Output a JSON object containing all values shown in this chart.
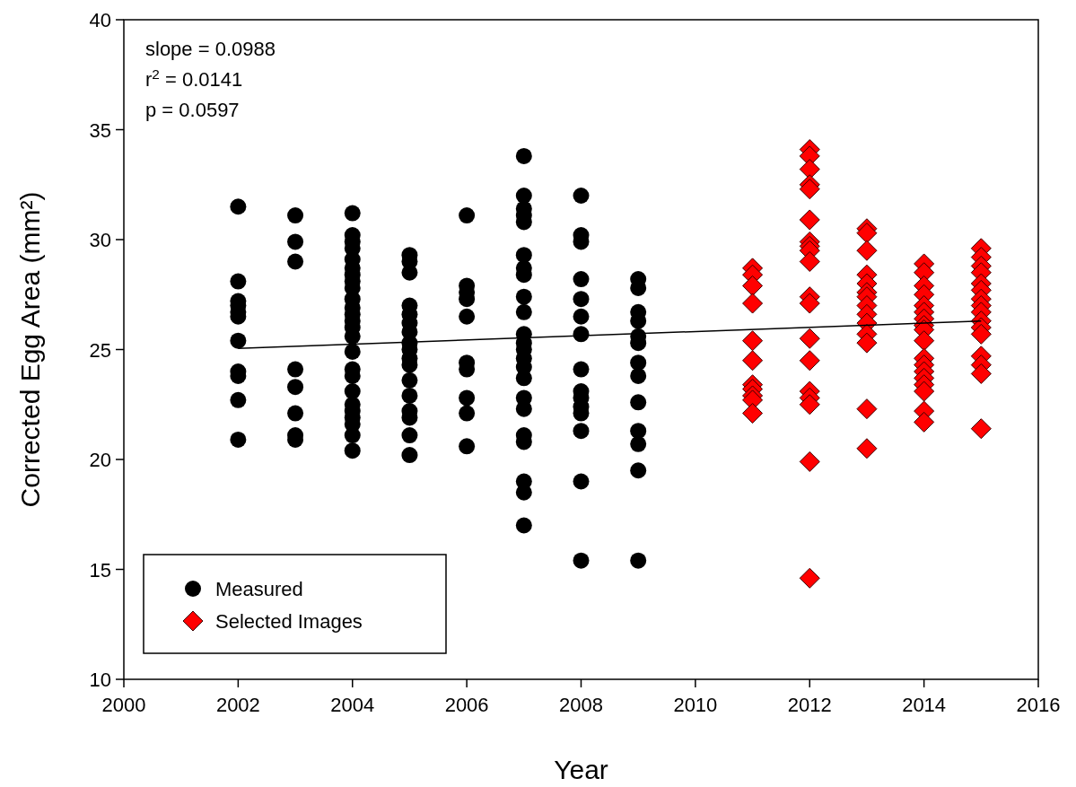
{
  "chart_data": {
    "type": "scatter",
    "xlabel": "Year",
    "ylabel": "Corrected Egg Area (mm²)",
    "xlim": [
      2000,
      2016
    ],
    "xticks": [
      2000,
      2002,
      2004,
      2006,
      2008,
      2010,
      2012,
      2014,
      2016
    ],
    "ylim": [
      10,
      40
    ],
    "yticks": [
      10,
      15,
      20,
      25,
      30,
      35,
      40
    ],
    "grid": false,
    "legend": "bottom left",
    "annotations": [
      "slope = 0.0988",
      "r$^{2}$ = 0.0141",
      "p = 0.0597"
    ],
    "series": [
      {
        "name": "Measured",
        "color": "#000000",
        "marker": "circle",
        "x": [
          2002,
          2002,
          2002,
          2002,
          2002,
          2002,
          2002,
          2002,
          2002,
          2002,
          2002,
          2003,
          2003,
          2003,
          2003,
          2003,
          2003,
          2003,
          2003,
          2004,
          2004,
          2004,
          2004,
          2004,
          2004,
          2004,
          2004,
          2004,
          2004,
          2004,
          2004,
          2004,
          2004,
          2004,
          2004,
          2004,
          2004,
          2004,
          2004,
          2004,
          2004,
          2004,
          2004,
          2004,
          2005,
          2005,
          2005,
          2005,
          2005,
          2005,
          2005,
          2005,
          2005,
          2005,
          2005,
          2005,
          2005,
          2005,
          2005,
          2005,
          2005,
          2006,
          2006,
          2006,
          2006,
          2006,
          2006,
          2006,
          2006,
          2006,
          2006,
          2007,
          2007,
          2007,
          2007,
          2007,
          2007,
          2007,
          2007,
          2007,
          2007,
          2007,
          2007,
          2007,
          2007,
          2007,
          2007,
          2007,
          2007,
          2007,
          2007,
          2007,
          2007,
          2007,
          2008,
          2008,
          2008,
          2008,
          2008,
          2008,
          2008,
          2008,
          2008,
          2008,
          2008,
          2008,
          2008,
          2008,
          2008,
          2009,
          2009,
          2009,
          2009,
          2009,
          2009,
          2009,
          2009,
          2009,
          2009,
          2009,
          2009,
          2009
        ],
        "values": [
          31.5,
          28.1,
          27.2,
          27.0,
          26.7,
          26.5,
          25.4,
          24.0,
          23.8,
          22.7,
          20.9,
          31.1,
          29.9,
          29.0,
          24.1,
          23.3,
          22.1,
          21.1,
          20.9,
          31.2,
          30.2,
          29.9,
          29.6,
          29.1,
          28.7,
          28.4,
          28.1,
          27.8,
          27.3,
          26.9,
          26.6,
          26.3,
          26.0,
          25.6,
          24.9,
          24.1,
          23.8,
          23.1,
          22.5,
          22.2,
          21.9,
          21.6,
          21.1,
          20.4,
          29.3,
          29.0,
          28.5,
          27.0,
          26.6,
          26.2,
          25.8,
          25.3,
          25.0,
          24.6,
          24.3,
          23.6,
          22.9,
          22.2,
          21.9,
          21.1,
          20.2,
          31.1,
          27.9,
          27.6,
          27.3,
          26.5,
          24.4,
          24.1,
          22.8,
          22.1,
          20.6,
          33.8,
          32.0,
          31.4,
          31.1,
          30.8,
          29.3,
          28.7,
          28.4,
          27.4,
          26.7,
          25.7,
          25.3,
          25.0,
          24.6,
          24.2,
          23.7,
          22.8,
          22.3,
          21.1,
          20.8,
          19.0,
          18.5,
          17.0,
          32.0,
          30.2,
          29.9,
          28.2,
          27.3,
          26.5,
          25.7,
          24.1,
          23.1,
          22.8,
          22.4,
          22.1,
          21.3,
          19.0,
          15.4,
          28.2,
          27.8,
          26.7,
          26.3,
          25.6,
          25.3,
          24.4,
          23.8,
          22.6,
          21.3,
          20.7,
          19.5,
          15.4
        ]
      },
      {
        "name": "Selected Images",
        "color": "#ff0000",
        "marker": "diamond",
        "x": [
          2011,
          2011,
          2011,
          2011,
          2011,
          2011,
          2011,
          2011,
          2011,
          2011,
          2011,
          2012,
          2012,
          2012,
          2012,
          2012,
          2012,
          2012,
          2012,
          2012,
          2012,
          2012,
          2012,
          2012,
          2012,
          2012,
          2012,
          2012,
          2012,
          2012,
          2013,
          2013,
          2013,
          2013,
          2013,
          2013,
          2013,
          2013,
          2013,
          2013,
          2013,
          2013,
          2013,
          2013,
          2014,
          2014,
          2014,
          2014,
          2014,
          2014,
          2014,
          2014,
          2014,
          2014,
          2014,
          2014,
          2014,
          2014,
          2014,
          2014,
          2014,
          2014,
          2015,
          2015,
          2015,
          2015,
          2015,
          2015,
          2015,
          2015,
          2015,
          2015,
          2015,
          2015,
          2015,
          2015,
          2015,
          2015
        ],
        "values": [
          28.7,
          28.4,
          27.9,
          27.1,
          25.4,
          24.5,
          23.4,
          23.2,
          22.9,
          22.7,
          22.1,
          34.1,
          33.8,
          33.2,
          32.5,
          32.3,
          30.9,
          29.9,
          29.7,
          29.5,
          29.0,
          27.4,
          27.1,
          25.5,
          24.5,
          23.1,
          22.8,
          22.5,
          19.9,
          14.6,
          30.5,
          30.3,
          29.5,
          28.4,
          28.0,
          27.6,
          27.4,
          27.0,
          26.6,
          26.2,
          25.7,
          25.3,
          22.3,
          20.5,
          28.9,
          28.5,
          27.9,
          27.5,
          27.0,
          26.7,
          26.4,
          26.1,
          25.9,
          25.4,
          24.6,
          24.3,
          24.0,
          23.7,
          23.4,
          23.1,
          22.2,
          21.7,
          29.6,
          29.2,
          28.8,
          28.5,
          28.0,
          27.7,
          27.3,
          27.0,
          26.7,
          26.3,
          26.0,
          25.7,
          24.7,
          24.3,
          23.9,
          21.4
        ]
      },
      {
        "type": "line",
        "color": "#000000",
        "marker": "none",
        "line_style": "solid",
        "x": [
          2002,
          2015
        ],
        "values": [
          25.05,
          26.3
        ]
      }
    ]
  }
}
